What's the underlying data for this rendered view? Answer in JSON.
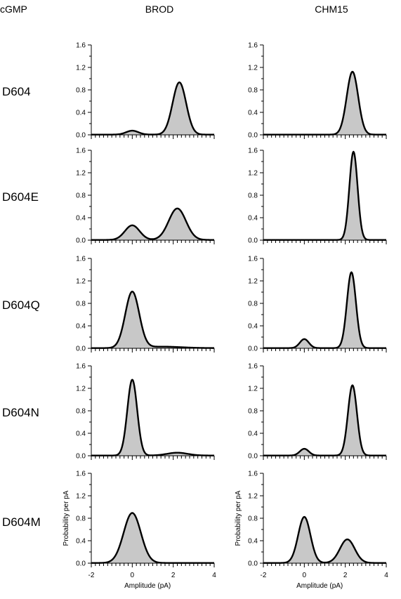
{
  "header": {
    "condition": "cGMP",
    "columns": [
      "BROD",
      "CHM15"
    ]
  },
  "rows": [
    "D604",
    "D604E",
    "D604Q",
    "D604N",
    "D604M"
  ],
  "axes": {
    "ylabel": "Probability per pA",
    "xlabel": "Amplitude (pA)",
    "yticks": [
      "0.0",
      "0.4",
      "0.8",
      "1.2",
      "1.6"
    ],
    "xticks": [
      "-2",
      "0",
      "2",
      "4"
    ]
  },
  "chart_data": {
    "type": "area",
    "x_range": [
      -2,
      4
    ],
    "y_range": [
      0,
      1.6
    ],
    "y_major_ticks": [
      0,
      0.4,
      0.8,
      1.2,
      1.6
    ],
    "y_minor_step": 0.2,
    "x_major_ticks": [
      -2,
      0,
      2,
      4
    ],
    "x_minor_step": 0.2,
    "line_color": "#000000",
    "fill_color": "#c8c8c8",
    "note": "Each panel: shaded amplitude histogram with fitted sum of Gaussians (closed level near 0 pA, open level near 2.2-2.4 pA).",
    "panels": [
      {
        "row": "D604",
        "column": "BROD",
        "components": [
          {
            "mean": 0.0,
            "sd": 0.3,
            "height": 0.07
          },
          {
            "mean": 2.3,
            "sd": 0.33,
            "height": 0.93
          }
        ]
      },
      {
        "row": "D604",
        "column": "CHM15",
        "components": [
          {
            "mean": 2.35,
            "sd": 0.28,
            "height": 1.12
          }
        ]
      },
      {
        "row": "D604E",
        "column": "BROD",
        "components": [
          {
            "mean": 0.0,
            "sd": 0.36,
            "height": 0.26
          },
          {
            "mean": 2.2,
            "sd": 0.42,
            "height": 0.56
          }
        ]
      },
      {
        "row": "D604E",
        "column": "CHM15",
        "components": [
          {
            "mean": 2.4,
            "sd": 0.2,
            "height": 1.57
          }
        ]
      },
      {
        "row": "D604Q",
        "column": "BROD",
        "components": [
          {
            "mean": 0.0,
            "sd": 0.34,
            "height": 1.0
          },
          {
            "mean": 1.5,
            "sd": 0.9,
            "height": 0.025
          }
        ]
      },
      {
        "row": "D604Q",
        "column": "CHM15",
        "components": [
          {
            "mean": 0.0,
            "sd": 0.22,
            "height": 0.16
          },
          {
            "mean": 2.3,
            "sd": 0.22,
            "height": 1.35
          }
        ]
      },
      {
        "row": "D604N",
        "column": "BROD",
        "components": [
          {
            "mean": 0.0,
            "sd": 0.24,
            "height": 1.35
          },
          {
            "mean": 2.2,
            "sd": 0.5,
            "height": 0.05
          }
        ]
      },
      {
        "row": "D604N",
        "column": "CHM15",
        "components": [
          {
            "mean": 0.0,
            "sd": 0.22,
            "height": 0.12
          },
          {
            "mean": 2.35,
            "sd": 0.22,
            "height": 1.25
          }
        ]
      },
      {
        "row": "D604M",
        "column": "BROD",
        "components": [
          {
            "mean": 0.0,
            "sd": 0.42,
            "height": 0.89
          }
        ]
      },
      {
        "row": "D604M",
        "column": "CHM15",
        "components": [
          {
            "mean": 0.0,
            "sd": 0.3,
            "height": 0.82
          },
          {
            "mean": 2.1,
            "sd": 0.36,
            "height": 0.42
          }
        ]
      }
    ]
  }
}
